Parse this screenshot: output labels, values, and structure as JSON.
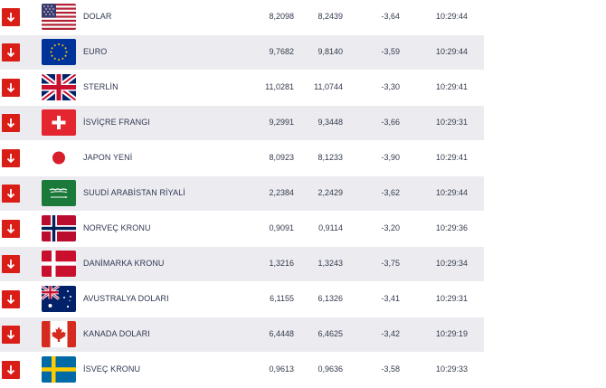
{
  "currencies": [
    {
      "name": "DOLAR",
      "flag": "us-flag",
      "buy": "8,2098",
      "sell": "8,2439",
      "change": "-3,64",
      "time": "10:29:44",
      "direction": "down"
    },
    {
      "name": "EURO",
      "flag": "eu-flag",
      "buy": "9,7682",
      "sell": "9,8140",
      "change": "-3,59",
      "time": "10:29:44",
      "direction": "down"
    },
    {
      "name": "STERLİN",
      "flag": "uk-flag",
      "buy": "11,0281",
      "sell": "11,0744",
      "change": "-3,30",
      "time": "10:29:41",
      "direction": "down"
    },
    {
      "name": "İSVİÇRE FRANGI",
      "flag": "swiss-flag",
      "buy": "9,2991",
      "sell": "9,3448",
      "change": "-3,66",
      "time": "10:29:31",
      "direction": "down"
    },
    {
      "name": "JAPON YENİ",
      "flag": "japan-flag",
      "buy": "8,0923",
      "sell": "8,1233",
      "change": "-3,90",
      "time": "10:29:41",
      "direction": "down"
    },
    {
      "name": "SUUDİ ARABİSTAN RİYALİ",
      "flag": "saudi-flag",
      "buy": "2,2384",
      "sell": "2,2429",
      "change": "-3,62",
      "time": "10:29:44",
      "direction": "down"
    },
    {
      "name": "NORVEÇ KRONU",
      "flag": "norway-flag",
      "buy": "0,9091",
      "sell": "0,9114",
      "change": "-3,20",
      "time": "10:29:36",
      "direction": "down"
    },
    {
      "name": "DANİMARKA KRONU",
      "flag": "denmark-flag",
      "buy": "1,3216",
      "sell": "1,3243",
      "change": "-3,75",
      "time": "10:29:34",
      "direction": "down"
    },
    {
      "name": "AVUSTRALYA DOLARI",
      "flag": "australia-flag",
      "buy": "6,1155",
      "sell": "6,1326",
      "change": "-3,41",
      "time": "10:29:31",
      "direction": "down"
    },
    {
      "name": "KANADA DOLARI",
      "flag": "canada-flag",
      "buy": "6,4448",
      "sell": "6,4625",
      "change": "-3,42",
      "time": "10:29:19",
      "direction": "down"
    },
    {
      "name": "İSVEÇ KRONU",
      "flag": "sweden-flag",
      "buy": "0,9613",
      "sell": "0,9636",
      "change": "-3,58",
      "time": "10:29:33",
      "direction": "down"
    }
  ],
  "colors": {
    "arrow_bg": "#d91e18",
    "row_alt": "#ececf0",
    "text": "#2f3652"
  }
}
